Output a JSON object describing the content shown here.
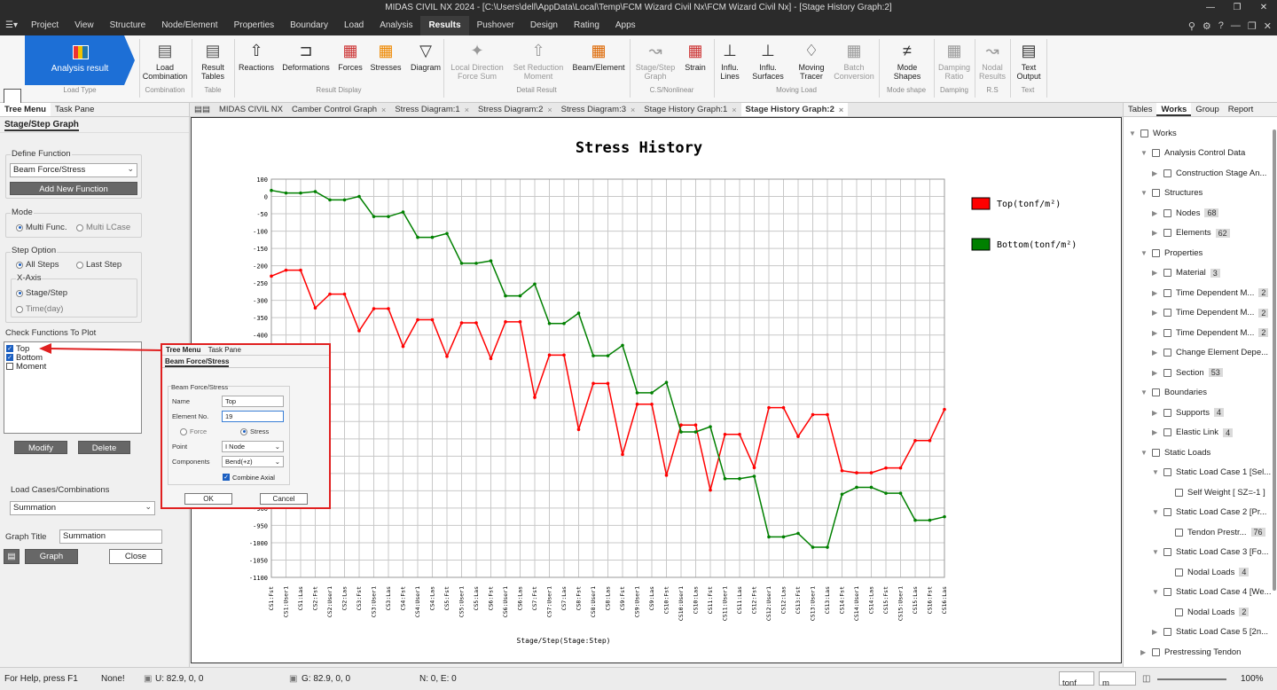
{
  "window": {
    "title": "MIDAS CIVIL NX 2024 - [C:\\Users\\dell\\AppData\\Local\\Temp\\FCM Wizard Civil Nx\\FCM Wizard Civil Nx] - [Stage History Graph:2]"
  },
  "menu": {
    "items": [
      "Project",
      "View",
      "Structure",
      "Node/Element",
      "Properties",
      "Boundary",
      "Load",
      "Analysis",
      "Results",
      "Pushover",
      "Design",
      "Rating",
      "Apps"
    ],
    "active": "Results"
  },
  "ribbon": {
    "load_type": {
      "label": "Analysis result",
      "group": "Load Type"
    },
    "buttons": [
      {
        "label": "Load\nCombination",
        "group": "Combination"
      },
      {
        "label": "Result\nTables",
        "group": "Table"
      },
      {
        "label": "Reactions"
      },
      {
        "label": "Deformations"
      },
      {
        "label": "Forces"
      },
      {
        "label": "Stresses"
      },
      {
        "label": "Diagram"
      },
      {
        "label": "Local Direction\nForce Sum"
      },
      {
        "label": "Set Reduction\nMoment"
      },
      {
        "label": "Beam/Element"
      },
      {
        "label": "Stage/Step\nGraph"
      },
      {
        "label": "Strain"
      },
      {
        "label": "Influ.\nLines"
      },
      {
        "label": "Influ.\nSurfaces"
      },
      {
        "label": "Moving\nTracer"
      },
      {
        "label": "Batch\nConversion"
      },
      {
        "label": "Mode\nShapes"
      },
      {
        "label": "Damping\nRatio"
      },
      {
        "label": "Nodal\nResults"
      },
      {
        "label": "Text\nOutput"
      }
    ],
    "groups": {
      "result_display": "Result Display",
      "detail_result": "Detail Result",
      "cs_nonlinear": "C.S/Nonlinear",
      "moving_load": "Moving Load",
      "mode_shape": "Mode shape",
      "damping": "Damping",
      "rs": "R.S",
      "text": "Text"
    }
  },
  "left_panel": {
    "tabs": [
      "Tree Menu",
      "Task Pane"
    ],
    "header": "Stage/Step Graph",
    "define_function": {
      "title": "Define Function",
      "selected": "Beam Force/Stress",
      "add_button": "Add New Function"
    },
    "mode": {
      "title": "Mode",
      "options": [
        "Multi Func.",
        "Multi LCase"
      ],
      "selected": "Multi Func."
    },
    "step_option": {
      "title": "Step Option",
      "options": [
        "All Steps",
        "Last Step"
      ],
      "selected": "All Steps",
      "x_axis_title": "X-Axis",
      "x_axis_options": [
        "Stage/Step",
        "Time(day)"
      ],
      "x_axis_selected": "Stage/Step"
    },
    "check_functions": {
      "title": "Check Functions To Plot",
      "items": [
        {
          "label": "Top",
          "checked": true
        },
        {
          "label": "Bottom",
          "checked": true
        },
        {
          "label": "Moment",
          "checked": false
        }
      ]
    },
    "modify_button": "Modify",
    "delete_button": "Delete",
    "load_cases": {
      "title": "Load Cases/Combinations",
      "selected": "Summation"
    },
    "graph_title": {
      "label": "Graph Title",
      "value": "Summation"
    },
    "graph_button": "Graph",
    "close_button": "Close"
  },
  "doc_tabs": [
    {
      "label": "MIDAS CIVIL NX",
      "active": false
    },
    {
      "label": "Camber Control Graph",
      "active": false
    },
    {
      "label": "Stress Diagram:1",
      "active": false
    },
    {
      "label": "Stress Diagram:2",
      "active": false
    },
    {
      "label": "Stress Diagram:3",
      "active": false
    },
    {
      "label": "Stage History Graph:1",
      "active": false
    },
    {
      "label": "Stage History Graph:2",
      "active": true
    }
  ],
  "dialog": {
    "tabs": [
      "Tree Menu",
      "Task Pane"
    ],
    "header": "Beam Force/Stress",
    "group": "Beam Force/Stress",
    "name_label": "Name",
    "name_value": "Top",
    "element_label": "Element No.",
    "element_value": "19",
    "force_label": "Force",
    "stress_label": "Stress",
    "point_label": "Point",
    "point_value": "I Node",
    "components_label": "Components",
    "components_value": "Bend(+z)",
    "combine_label": "Combine Axial",
    "ok": "OK",
    "cancel": "Cancel"
  },
  "chart_data": {
    "type": "line",
    "title": "Stress History",
    "xlabel": "Stage/Step(Stage:Step)",
    "ylabel": "",
    "ylim": [
      -1100,
      100
    ],
    "yticks": [
      100,
      0,
      -50,
      -100,
      -150,
      -200,
      -250,
      -300,
      -350,
      -400,
      -450,
      -500,
      -550,
      -600,
      -650,
      -700,
      -750,
      -800,
      -850,
      -900,
      -950,
      -1000,
      -1050,
      -1100
    ],
    "grid": true,
    "legend_placement": "top-right",
    "categories": [
      "CS1:Fst",
      "CS1:User1",
      "CS1:Las",
      "CS2:Fst",
      "CS2:User1",
      "CS2:Las",
      "CS3:Fst",
      "CS3:User1",
      "CS3:Las",
      "CS4:Fst",
      "CS4:User1",
      "CS4:Las",
      "CS5:Fst",
      "CS5:User1",
      "CS5:Las",
      "CS6:Fst",
      "CS6:User1",
      "CS6:Las",
      "CS7:Fst",
      "CS7:User1",
      "CS7:Las",
      "CS8:Fst",
      "CS8:User1",
      "CS8:Las",
      "CS9:Fst",
      "CS9:User1",
      "CS9:Las",
      "CS10:Fst",
      "CS10:User1",
      "CS10:Las",
      "CS11:Fst",
      "CS11:User1",
      "CS11:Las",
      "CS12:Fst",
      "CS12:User1",
      "CS12:Las",
      "CS13:Fst",
      "CS13:User1",
      "CS13:Las",
      "CS14:Fst",
      "CS14:User1",
      "CS14:Las",
      "CS15:Fst",
      "CS15:User1",
      "CS15:Las",
      "CS16:Fst",
      "CS16:Las"
    ],
    "series": [
      {
        "name": "Top(tonf/m²)",
        "color": "#ff0000",
        "values": [
          -230,
          -213,
          -213,
          -322,
          -282,
          -282,
          -388,
          -324,
          -324,
          -433,
          -356,
          -356,
          -462,
          -365,
          -365,
          -468,
          -362,
          -362,
          -580,
          -458,
          -458,
          -673,
          -540,
          -540,
          -745,
          -600,
          -600,
          -805,
          -660,
          -660,
          -848,
          -687,
          -687,
          -783,
          -610,
          -610,
          -693,
          -630,
          -630,
          -792,
          -798,
          -798,
          -784,
          -784,
          -705,
          -705,
          -615
        ],
        "legend_label": "Top(tonf/m²)"
      },
      {
        "name": "Bottom(tonf/m²)",
        "color": "#008000",
        "values": [
          35,
          20,
          20,
          28,
          -10,
          -10,
          0,
          -58,
          -58,
          -45,
          -118,
          -118,
          -107,
          -193,
          -193,
          -186,
          -287,
          -287,
          -253,
          -367,
          -367,
          -337,
          -460,
          -460,
          -430,
          -567,
          -567,
          -537,
          -680,
          -680,
          -665,
          -815,
          -815,
          -808,
          -983,
          -983,
          -973,
          -1013,
          -1013,
          -860,
          -840,
          -840,
          -857,
          -857,
          -935,
          -935,
          -925
        ],
        "legend_label": "Bottom(tonf/m²)"
      }
    ]
  },
  "right_panel": {
    "tabs": [
      "Tables",
      "Works",
      "Group",
      "Report"
    ],
    "active_tab": "Works",
    "tree": [
      {
        "label": "Works",
        "level": 0,
        "badge": ""
      },
      {
        "label": "Analysis Control Data",
        "level": 1,
        "badge": ""
      },
      {
        "label": "Construction Stage An...",
        "level": 2,
        "badge": ""
      },
      {
        "label": "Structures",
        "level": 1,
        "badge": ""
      },
      {
        "label": "Nodes",
        "level": 2,
        "badge": "68"
      },
      {
        "label": "Elements",
        "level": 2,
        "badge": "62"
      },
      {
        "label": "Properties",
        "level": 1,
        "badge": ""
      },
      {
        "label": "Material",
        "level": 2,
        "badge": "3"
      },
      {
        "label": "Time Dependent M...",
        "level": 2,
        "badge": "2"
      },
      {
        "label": "Time Dependent M...",
        "level": 2,
        "badge": "2"
      },
      {
        "label": "Time Dependent M...",
        "level": 2,
        "badge": "2"
      },
      {
        "label": "Change Element Depe...",
        "level": 2,
        "badge": ""
      },
      {
        "label": "Section",
        "level": 2,
        "badge": "53"
      },
      {
        "label": "Boundaries",
        "level": 1,
        "badge": ""
      },
      {
        "label": "Supports",
        "level": 2,
        "badge": "4"
      },
      {
        "label": "Elastic Link",
        "level": 2,
        "badge": "4"
      },
      {
        "label": "Static Loads",
        "level": 1,
        "badge": ""
      },
      {
        "label": "Static Load Case 1 [Sel...",
        "level": 2,
        "badge": ""
      },
      {
        "label": "Self Weight [ SZ=-1 ]",
        "level": 3,
        "badge": ""
      },
      {
        "label": "Static Load Case 2 [Pr...",
        "level": 2,
        "badge": ""
      },
      {
        "label": "Tendon Prestr...",
        "level": 3,
        "badge": "76"
      },
      {
        "label": "Static Load Case 3 [Fo...",
        "level": 2,
        "badge": ""
      },
      {
        "label": "Nodal Loads",
        "level": 3,
        "badge": "4"
      },
      {
        "label": "Static Load Case 4 [We...",
        "level": 2,
        "badge": ""
      },
      {
        "label": "Nodal Loads",
        "level": 3,
        "badge": "2"
      },
      {
        "label": "Static Load Case 5 [2n...",
        "level": 2,
        "badge": ""
      },
      {
        "label": "Prestressing Tendon",
        "level": 1,
        "badge": ""
      }
    ]
  },
  "status_bar": {
    "help": "For Help, press F1",
    "none": "None!",
    "u": "U: 82.9, 0, 0",
    "g": "G: 82.9, 0, 0",
    "ne": "N: 0, E: 0",
    "unit_force": "tonf",
    "unit_length": "m",
    "zoom": "100%"
  }
}
